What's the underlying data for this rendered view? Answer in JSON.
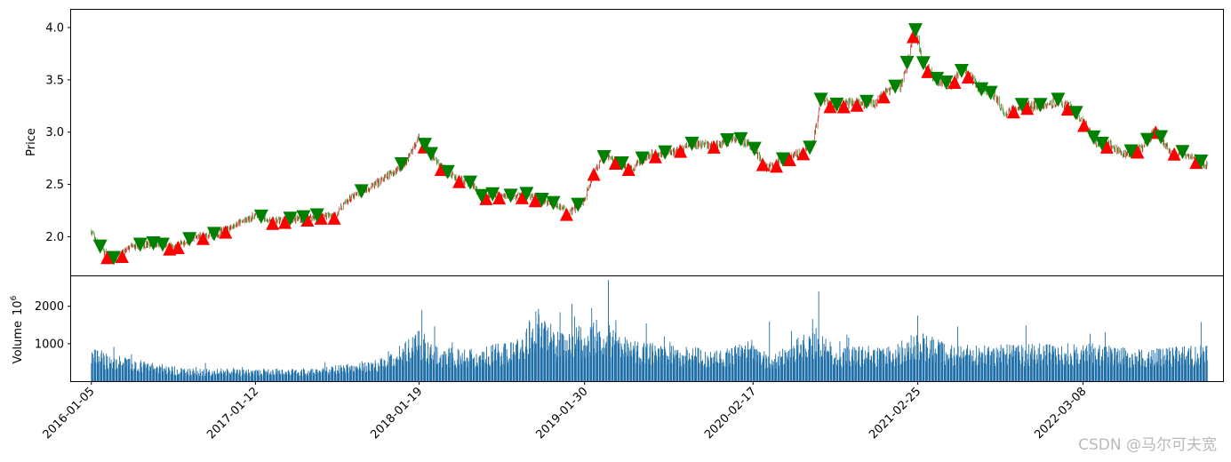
{
  "chart_data": [
    {
      "type": "candlestick",
      "ylabel": "Price",
      "ylim": [
        1.63,
        4.17
      ],
      "yticks": [
        "2.0",
        "2.5",
        "3.0",
        "3.5",
        "4.0"
      ],
      "candle_colors": {
        "up": "#d62728",
        "down": "#2ca02c"
      },
      "marker_colors": {
        "buy": "#ff0000",
        "sell": "#008000"
      },
      "price_path": [
        [
          "2016-01-05",
          2.05
        ],
        [
          "2016-01-20",
          1.92
        ],
        [
          "2016-02-15",
          1.8
        ],
        [
          "2016-03-01",
          1.78
        ],
        [
          "2016-04-01",
          1.9
        ],
        [
          "2016-05-20",
          1.93
        ],
        [
          "2016-07-10",
          1.9
        ],
        [
          "2016-09-01",
          2.0
        ],
        [
          "2016-10-15",
          2.02
        ],
        [
          "2016-11-20",
          2.1
        ],
        [
          "2017-01-12",
          2.2
        ],
        [
          "2017-02-20",
          2.15
        ],
        [
          "2017-04-20",
          2.17
        ],
        [
          "2017-06-10",
          2.2
        ],
        [
          "2017-07-10",
          2.2
        ],
        [
          "2017-08-10",
          2.35
        ],
        [
          "2017-09-20",
          2.45
        ],
        [
          "2017-10-20",
          2.52
        ],
        [
          "2017-12-01",
          2.65
        ],
        [
          "2017-12-20",
          2.72
        ],
        [
          "2018-01-19",
          2.95
        ],
        [
          "2018-02-20",
          2.75
        ],
        [
          "2018-03-20",
          2.62
        ],
        [
          "2018-04-20",
          2.55
        ],
        [
          "2018-05-20",
          2.5
        ],
        [
          "2018-06-10",
          2.38
        ],
        [
          "2018-07-10",
          2.4
        ],
        [
          "2018-08-10",
          2.38
        ],
        [
          "2018-09-20",
          2.4
        ],
        [
          "2018-10-20",
          2.35
        ],
        [
          "2018-12-01",
          2.3
        ],
        [
          "2018-12-25",
          2.22
        ],
        [
          "2019-01-30",
          2.35
        ],
        [
          "2019-02-20",
          2.62
        ],
        [
          "2019-03-20",
          2.78
        ],
        [
          "2019-04-20",
          2.7
        ],
        [
          "2019-05-20",
          2.65
        ],
        [
          "2019-06-20",
          2.78
        ],
        [
          "2019-08-10",
          2.8
        ],
        [
          "2019-10-01",
          2.88
        ],
        [
          "2019-12-01",
          2.88
        ],
        [
          "2020-01-10",
          2.95
        ],
        [
          "2020-02-17",
          2.85
        ],
        [
          "2020-03-20",
          2.65
        ],
        [
          "2020-04-20",
          2.72
        ],
        [
          "2020-05-20",
          2.78
        ],
        [
          "2020-06-30",
          2.85
        ],
        [
          "2020-07-20",
          3.3
        ],
        [
          "2020-08-20",
          3.25
        ],
        [
          "2020-10-01",
          3.28
        ],
        [
          "2020-11-20",
          3.28
        ],
        [
          "2020-12-20",
          3.4
        ],
        [
          "2021-01-20",
          3.45
        ],
        [
          "2021-02-05",
          3.72
        ],
        [
          "2021-02-18",
          4.0
        ],
        [
          "2021-03-10",
          3.65
        ],
        [
          "2021-04-10",
          3.5
        ],
        [
          "2021-05-10",
          3.45
        ],
        [
          "2021-06-10",
          3.6
        ],
        [
          "2021-07-20",
          3.4
        ],
        [
          "2021-08-20",
          3.35
        ],
        [
          "2021-09-10",
          3.18
        ],
        [
          "2021-10-20",
          3.25
        ],
        [
          "2021-12-01",
          3.25
        ],
        [
          "2022-01-10",
          3.3
        ],
        [
          "2022-02-10",
          3.22
        ],
        [
          "2022-03-08",
          3.1
        ],
        [
          "2022-04-10",
          2.88
        ],
        [
          "2022-05-10",
          2.88
        ],
        [
          "2022-06-10",
          2.78
        ],
        [
          "2022-07-20",
          2.85
        ],
        [
          "2022-08-20",
          3.02
        ],
        [
          "2022-09-20",
          2.82
        ],
        [
          "2022-10-20",
          2.8
        ],
        [
          "2022-12-15",
          2.68
        ]
      ]
    },
    {
      "type": "bar",
      "ylabel": "Volume",
      "scale_label": "10",
      "scale_exp": "6",
      "ylim": [
        0,
        2800
      ],
      "yticks": [
        "1000",
        "2000"
      ],
      "color": "#1f6fa8",
      "volume_path": [
        [
          "2016-01-05",
          650
        ],
        [
          "2016-03-01",
          500
        ],
        [
          "2016-05-01",
          400
        ],
        [
          "2016-08-01",
          250
        ],
        [
          "2016-12-01",
          230
        ],
        [
          "2017-06-01",
          250
        ],
        [
          "2017-11-01",
          450
        ],
        [
          "2018-01-19",
          1000
        ],
        [
          "2018-03-01",
          650
        ],
        [
          "2018-06-01",
          650
        ],
        [
          "2018-09-01",
          800
        ],
        [
          "2018-10-15",
          1500
        ],
        [
          "2018-12-01",
          900
        ],
        [
          "2019-02-01",
          1100
        ],
        [
          "2019-03-10",
          1250
        ],
        [
          "2019-05-01",
          850
        ],
        [
          "2019-08-01",
          700
        ],
        [
          "2019-12-01",
          600
        ],
        [
          "2020-02-17",
          800
        ],
        [
          "2020-04-01",
          500
        ],
        [
          "2020-07-10",
          1100
        ],
        [
          "2020-09-01",
          650
        ],
        [
          "2021-01-01",
          700
        ],
        [
          "2021-02-25",
          950
        ],
        [
          "2021-05-01",
          750
        ],
        [
          "2021-09-01",
          700
        ],
        [
          "2022-03-08",
          750
        ],
        [
          "2022-06-01",
          650
        ],
        [
          "2022-09-01",
          650
        ],
        [
          "2022-12-15",
          700
        ]
      ],
      "spikes": [
        [
          "2019-03-25",
          2700
        ],
        [
          "2020-07-15",
          2400
        ],
        [
          "2018-10-20",
          2300
        ],
        [
          "2019-02-15",
          1950
        ],
        [
          "2018-01-25",
          1900
        ],
        [
          "2020-03-25",
          1600
        ],
        [
          "2022-04-30",
          1600
        ],
        [
          "2022-12-01",
          1580
        ],
        [
          "2021-02-25",
          1750
        ]
      ]
    }
  ],
  "xaxis": {
    "range": [
      "2015-11-20",
      "2023-01-20"
    ],
    "ticks": [
      "2016-01-05",
      "2017-01-12",
      "2018-01-19",
      "2019-01-30",
      "2020-02-17",
      "2021-02-25",
      "2022-03-08"
    ]
  },
  "signals": {
    "buy": [
      "2016-02-10",
      "2016-03-15",
      "2016-07-01",
      "2016-07-20",
      "2016-09-15",
      "2016-11-05",
      "2017-02-20",
      "2017-03-20",
      "2017-05-10",
      "2017-06-10",
      "2017-07-10",
      "2018-01-30",
      "2018-03-10",
      "2018-04-20",
      "2018-06-20",
      "2018-07-20",
      "2018-09-10",
      "2018-10-10",
      "2018-12-20",
      "2019-02-20",
      "2019-04-10",
      "2019-05-10",
      "2019-07-10",
      "2019-09-05",
      "2019-11-20",
      "2020-03-10",
      "2020-04-10",
      "2020-05-10",
      "2020-06-10",
      "2020-08-10",
      "2020-09-10",
      "2020-10-10",
      "2020-12-10",
      "2021-02-15",
      "2021-03-20",
      "2021-05-20",
      "2021-06-20",
      "2021-10-01",
      "2021-11-01",
      "2022-02-01",
      "2022-03-10",
      "2022-05-01",
      "2022-07-10",
      "2022-08-20",
      "2022-10-01",
      "2022-11-20"
    ],
    "sell": [
      "2016-01-25",
      "2016-02-25",
      "2016-04-25",
      "2016-05-25",
      "2016-06-15",
      "2016-08-15",
      "2016-10-10",
      "2017-01-25",
      "2017-04-01",
      "2017-05-01",
      "2017-06-01",
      "2017-09-10",
      "2017-12-10",
      "2018-02-01",
      "2018-02-15",
      "2018-03-25",
      "2018-05-15",
      "2018-06-10",
      "2018-07-05",
      "2018-08-15",
      "2018-09-20",
      "2018-10-25",
      "2018-11-20",
      "2019-01-15",
      "2019-03-15",
      "2019-04-25",
      "2019-06-10",
      "2019-08-01",
      "2019-10-01",
      "2019-12-20",
      "2020-01-20",
      "2020-02-20",
      "2020-04-25",
      "2020-06-25",
      "2020-07-20",
      "2020-08-25",
      "2020-11-01",
      "2021-01-05",
      "2021-02-01",
      "2021-02-20",
      "2021-03-10",
      "2021-04-10",
      "2021-05-01",
      "2021-06-05",
      "2021-07-20",
      "2021-08-10",
      "2021-10-20",
      "2021-12-01",
      "2022-01-10",
      "2022-02-20",
      "2022-04-01",
      "2022-04-20",
      "2022-06-25",
      "2022-08-01",
      "2022-09-01",
      "2022-10-20",
      "2022-12-01"
    ]
  },
  "watermark": "CSDN @马尔可夫宽"
}
